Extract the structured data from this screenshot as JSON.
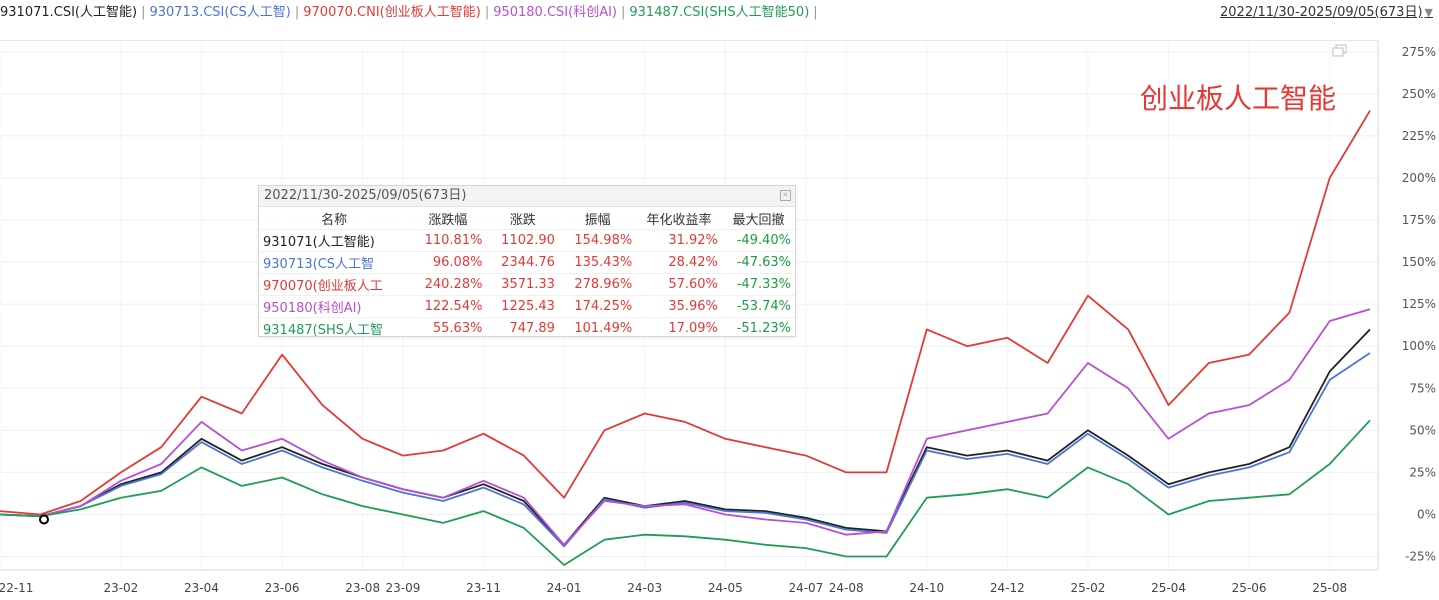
{
  "legend": {
    "items": [
      {
        "label": "931071.CSI(人工智能)",
        "color": "#222222"
      },
      {
        "label": "930713.CSI(CS人工智)",
        "color": "#4a74d9"
      },
      {
        "label": "970070.CNI(创业板人工智能)",
        "color": "#e53935"
      },
      {
        "label": "950180.CSI(科创AI)",
        "color": "#b84fd6"
      },
      {
        "label": "931487.CSI(SHS人工智能50)",
        "color": "#1f9d55"
      }
    ],
    "separator": "|",
    "date_range": "2022/11/30-2025/09/05(673日)"
  },
  "stats_panel": {
    "title": "2022/11/30-2025/09/05(673日)",
    "close_icon": "close-icon",
    "headers": [
      "名称",
      "涨跌幅",
      "涨跌",
      "振幅",
      "年化收益率",
      "最大回撤"
    ],
    "rows": [
      {
        "name": "931071(人工智能)",
        "color": "#222222",
        "chg_pct": "110.81%",
        "chg": "1102.90",
        "amplitude": "154.98%",
        "annual": "31.92%",
        "max_dd": "-49.40%"
      },
      {
        "name": "930713(CS人工智",
        "color": "#4a74d9",
        "chg_pct": "96.08%",
        "chg": "2344.76",
        "amplitude": "135.43%",
        "annual": "28.42%",
        "max_dd": "-47.63%"
      },
      {
        "name": "970070(创业板人工",
        "color": "#e53935",
        "chg_pct": "240.28%",
        "chg": "3571.33",
        "amplitude": "278.96%",
        "annual": "57.60%",
        "max_dd": "-47.33%"
      },
      {
        "name": "950180(科创AI)",
        "color": "#b84fd6",
        "chg_pct": "122.54%",
        "chg": "1225.43",
        "amplitude": "174.25%",
        "annual": "35.96%",
        "max_dd": "-53.74%"
      },
      {
        "name": "931487(SHS人工智",
        "color": "#1f9d55",
        "chg_pct": "55.63%",
        "chg": "747.89",
        "amplitude": "101.49%",
        "annual": "17.09%",
        "max_dd": "-51.23%"
      }
    ]
  },
  "chart_data": {
    "type": "line",
    "annotation": "创业板人工智能",
    "grid": true,
    "ylim": [
      -33,
      282
    ],
    "y_ticks": [
      -25,
      0,
      25,
      50,
      75,
      100,
      125,
      150,
      175,
      200,
      225,
      250,
      275
    ],
    "y_tick_labels": [
      "-25%",
      "0%",
      "25%",
      "50%",
      "75%",
      "100%",
      "125%",
      "150%",
      "175%",
      "200%",
      "225%",
      "250%",
      "275%"
    ],
    "x_ticks": [
      "22-11",
      "23-02",
      "23-04",
      "23-06",
      "23-08",
      "23-09",
      "23-11",
      "24-01",
      "24-03",
      "24-05",
      "24-07",
      "24-08",
      "24-10",
      "24-12",
      "25-02",
      "25-04",
      "25-06",
      "25-08"
    ],
    "x": [
      "22-11",
      "22-12",
      "23-01",
      "23-02",
      "23-03",
      "23-04",
      "23-05",
      "23-06",
      "23-07",
      "23-08",
      "23-09",
      "23-10",
      "23-11",
      "23-12",
      "24-01",
      "24-02",
      "24-03",
      "24-04",
      "24-05",
      "24-06",
      "24-07",
      "24-08",
      "24-09",
      "24-10",
      "24-11",
      "24-12",
      "25-01",
      "25-02",
      "25-03",
      "25-04",
      "25-05",
      "25-06",
      "25-07",
      "25-08",
      "25-09"
    ],
    "series": [
      {
        "name": "931071.CSI(人工智能)",
        "color": "#222222",
        "values": [
          0,
          -1,
          5,
          18,
          25,
          45,
          32,
          40,
          30,
          22,
          15,
          10,
          18,
          8,
          -18,
          10,
          5,
          8,
          3,
          2,
          -2,
          -8,
          -10,
          40,
          35,
          38,
          32,
          50,
          35,
          18,
          25,
          30,
          40,
          85,
          110
        ]
      },
      {
        "name": "930713.CSI(CS人工智)",
        "color": "#4a74d9",
        "values": [
          0,
          -1,
          5,
          17,
          24,
          43,
          30,
          38,
          28,
          20,
          13,
          8,
          16,
          6,
          -19,
          9,
          4,
          7,
          2,
          1,
          -3,
          -9,
          -11,
          38,
          33,
          36,
          30,
          48,
          33,
          16,
          23,
          28,
          37,
          80,
          96
        ]
      },
      {
        "name": "970070.CNI(创业板人工智能)",
        "color": "#e53935",
        "values": [
          2,
          0,
          8,
          25,
          40,
          70,
          60,
          95,
          65,
          45,
          35,
          38,
          48,
          35,
          10,
          50,
          60,
          55,
          45,
          40,
          35,
          25,
          25,
          110,
          100,
          105,
          90,
          130,
          110,
          65,
          90,
          95,
          120,
          200,
          240
        ]
      },
      {
        "name": "950180.CSI(科创AI)",
        "color": "#b84fd6",
        "values": [
          0,
          -1,
          5,
          20,
          30,
          55,
          38,
          45,
          32,
          22,
          15,
          10,
          20,
          10,
          -18,
          8,
          5,
          6,
          0,
          -3,
          -5,
          -12,
          -10,
          45,
          50,
          55,
          60,
          90,
          75,
          45,
          60,
          65,
          80,
          115,
          122
        ]
      },
      {
        "name": "931487.CSI(SHS人工智能50)",
        "color": "#1f9d55",
        "values": [
          0,
          -1,
          3,
          10,
          14,
          28,
          17,
          22,
          12,
          5,
          0,
          -5,
          2,
          -8,
          -30,
          -15,
          -12,
          -13,
          -15,
          -18,
          -20,
          -25,
          -25,
          10,
          12,
          15,
          10,
          28,
          18,
          0,
          8,
          10,
          12,
          30,
          56
        ]
      }
    ]
  }
}
